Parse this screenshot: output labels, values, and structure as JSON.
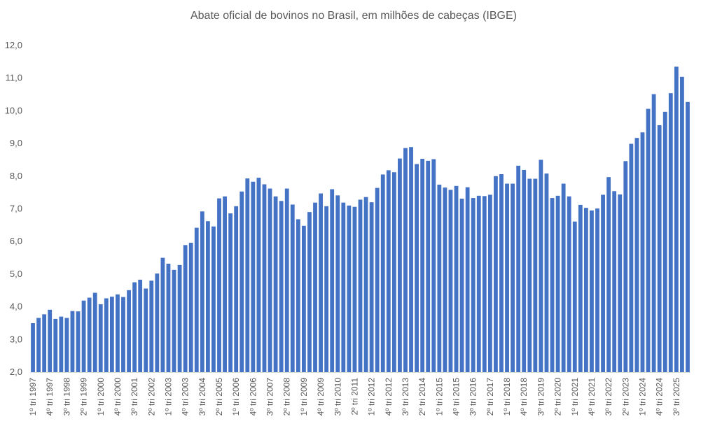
{
  "chart_data": {
    "type": "bar",
    "title": "Abate oficial de bovinos no Brasil, em milhões de cabeças (IBGE)",
    "xlabel": "",
    "ylabel": "",
    "ylim": [
      2.0,
      12.0
    ],
    "yticks": [
      "2,0",
      "3,0",
      "4,0",
      "5,0",
      "6,0",
      "7,0",
      "8,0",
      "9,0",
      "10,0",
      "11,0",
      "12,0"
    ],
    "grid": false,
    "legend": "none",
    "bar_color": "#4472C4",
    "x_tick_labels": [
      "1º tri 1997",
      "4º tri 1997",
      "3º tri 1998",
      "2º tri 1999",
      "1º tri 2000",
      "4º tri 2000",
      "3º tri 2001",
      "2º tri 2002",
      "1º tri 2003",
      "4º tri 2003",
      "3º tri 2004",
      "2º tri 2005",
      "1º tri 2006",
      "4º tri 2006",
      "3º tri 2007",
      "2º tri 2008",
      "1º tri 2009",
      "4º tri 2009",
      "3º tri 2010",
      "2º tri 2011",
      "1º tri 2012",
      "4º tri 2012",
      "3º tri 2013",
      "2º tri 2014",
      "1º tri 2015",
      "4º tri 2015",
      "3º tri 2016",
      "2º tri 2017",
      "1º tri 2018",
      "4º tri 2018",
      "3º tri 2019",
      "2º tri 2020",
      "1º tri 2021",
      "4º tri 2021",
      "3º tri 2022",
      "2º tri 2023",
      "1º tri 2024",
      "4º tri 2024",
      "3º tri 2025"
    ],
    "x_tick_every": 3,
    "values": [
      3.5,
      3.66,
      3.77,
      3.91,
      3.63,
      3.7,
      3.66,
      3.87,
      3.86,
      4.19,
      4.28,
      4.43,
      4.08,
      4.26,
      4.31,
      4.38,
      4.3,
      4.51,
      4.75,
      4.83,
      4.56,
      4.8,
      5.02,
      5.5,
      5.32,
      5.13,
      5.28,
      5.89,
      5.96,
      6.42,
      6.92,
      6.62,
      6.46,
      7.32,
      7.38,
      6.86,
      7.08,
      7.53,
      7.93,
      7.83,
      7.95,
      7.75,
      7.62,
      7.38,
      7.24,
      7.62,
      7.13,
      6.68,
      6.48,
      6.9,
      7.19,
      7.47,
      7.08,
      7.6,
      7.41,
      7.19,
      7.1,
      7.06,
      7.28,
      7.36,
      7.2,
      7.64,
      8.05,
      8.18,
      8.12,
      8.54,
      8.86,
      8.89,
      8.37,
      8.53,
      8.47,
      8.52,
      7.74,
      7.65,
      7.58,
      7.7,
      7.31,
      7.66,
      7.33,
      7.4,
      7.39,
      7.43,
      8.0,
      8.06,
      7.77,
      7.77,
      8.32,
      8.19,
      7.92,
      7.92,
      8.5,
      8.08,
      7.33,
      7.4,
      7.77,
      7.38,
      6.61,
      7.12,
      7.03,
      6.95,
      7.01,
      7.43,
      7.97,
      7.54,
      7.44,
      8.46,
      8.99,
      9.17,
      9.34,
      10.06,
      10.51,
      9.56,
      9.97,
      10.54,
      11.35,
      11.04,
      10.27
    ]
  }
}
